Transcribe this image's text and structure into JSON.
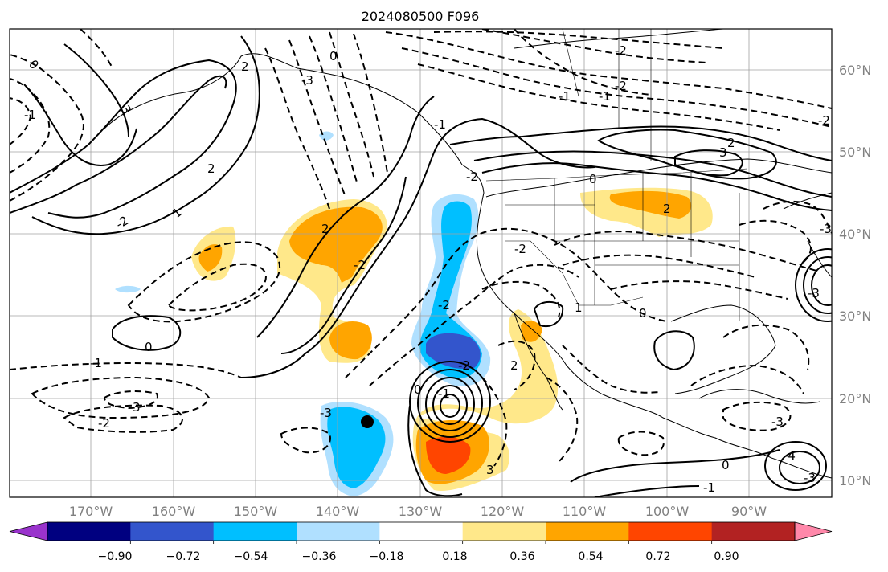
{
  "title": "2024080500 F096",
  "lon_labels": [
    "170°W",
    "160°W",
    "150°W",
    "140°W",
    "130°W",
    "120°W",
    "110°W",
    "100°W",
    "90°W"
  ],
  "lat_labels": [
    "60°N",
    "50°N",
    "40°N",
    "30°N",
    "20°N",
    "10°N"
  ],
  "colorbar": {
    "ticks": [
      "−0.90",
      "−0.72",
      "−0.54",
      "−0.36",
      "−0.18",
      "0.18",
      "0.36",
      "0.54",
      "0.72",
      "0.90"
    ],
    "colors": [
      "#9933cc",
      "#000080",
      "#3355cc",
      "#00bfff",
      "#b0e0ff",
      "#ffffff",
      "#ffe88a",
      "#ffa500",
      "#ff4500",
      "#b22222",
      "#ff88aa"
    ]
  },
  "contour_labels": [
    "0",
    "-1",
    "2",
    "3",
    "-2",
    "2",
    "-2",
    "1",
    "0",
    "-1",
    "-2",
    "3",
    "-3",
    "-2",
    "0",
    "-1",
    "-2",
    "2",
    "-2",
    "-3",
    "2",
    "0",
    "-1",
    "-2",
    "0",
    "-1",
    "1",
    "0",
    "2",
    "-2",
    "-1",
    "-2",
    "3",
    "2",
    "-2",
    "-3",
    "-3",
    "-4",
    "-1",
    "-3",
    "-3",
    "0",
    "3"
  ],
  "marker": "storm-center-dot"
}
